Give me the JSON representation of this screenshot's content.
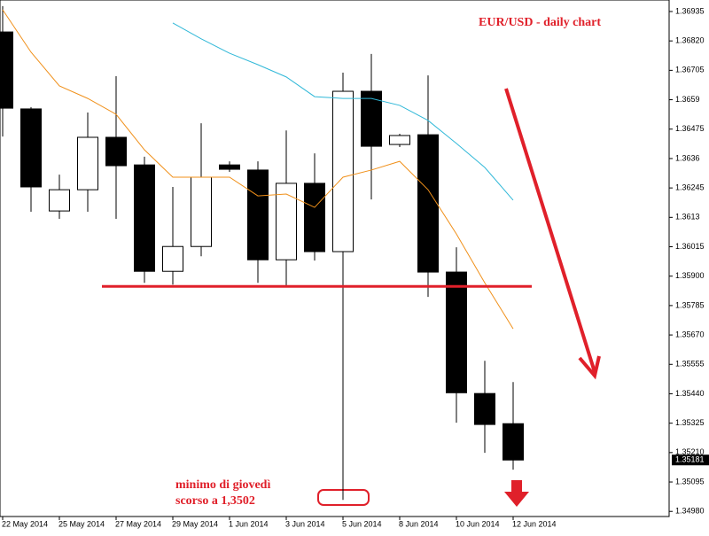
{
  "chart_data": {
    "type": "candlestick",
    "title": "EUR/USD - daily chart",
    "categories": [
      "22 May 2014",
      null,
      "25 May 2014",
      null,
      "27 May 2014",
      null,
      "29 May 2014",
      null,
      "1 Jun 2014",
      null,
      "3 Jun 2014",
      null,
      "5 Jun 2014",
      null,
      "8 Jun 2014",
      null,
      "10 Jun 2014",
      null,
      "12 Jun 2014"
    ],
    "open": [
      1.36855,
      1.36554,
      1.36155,
      1.36238,
      1.36443,
      1.36335,
      1.35919,
      1.36016,
      1.36335,
      1.36315,
      1.35964,
      1.36263,
      1.35996,
      1.36623,
      1.36415,
      1.36453,
      1.35916,
      1.35441,
      1.35323
    ],
    "high": [
      1.36956,
      1.36561,
      1.36297,
      1.3654,
      1.36682,
      1.36367,
      1.36249,
      1.36498,
      1.36349,
      1.36349,
      1.3647,
      1.3638,
      1.36696,
      1.36769,
      1.36457,
      1.36685,
      1.36013,
      1.35569,
      1.35486
    ],
    "low": [
      1.36446,
      1.36152,
      1.36124,
      1.36152,
      1.36124,
      1.35874,
      1.35867,
      1.35978,
      1.36308,
      1.35874,
      1.3586,
      1.35961,
      1.35025,
      1.362,
      1.36405,
      1.35819,
      1.35327,
      1.35209,
      1.35143
    ],
    "close": [
      1.36557,
      1.36249,
      1.36238,
      1.36443,
      1.36332,
      1.35919,
      1.36016,
      1.36287,
      1.36318,
      1.35964,
      1.36263,
      1.35996,
      1.36623,
      1.36408,
      1.3645,
      1.35916,
      1.35444,
      1.3532,
      1.35181
    ],
    "up_color": "#ffffff",
    "down_color": "#000000",
    "series": [
      {
        "color": "#f0901a",
        "values": [
          1.36942,
          1.36776,
          1.36644,
          1.36595,
          1.36533,
          1.36394,
          1.36287,
          1.36287,
          1.36287,
          1.36214,
          1.36221,
          1.36169,
          1.36287,
          1.36315,
          1.36349,
          1.36238,
          1.36065,
          1.35874,
          1.35694
        ]
      },
      {
        "color": "#30b8d8",
        "values": [
          null,
          null,
          null,
          null,
          null,
          null,
          1.3689,
          1.36828,
          1.36772,
          1.36727,
          1.36679,
          1.36602,
          1.36595,
          1.36595,
          1.36568,
          1.36509,
          1.36419,
          1.36325,
          1.36197
        ]
      }
    ],
    "support_level": 1.3586,
    "support_color": "#e0202a",
    "last_price": 1.35181,
    "annotation": [
      "minimo di giovedì",
      "scorso a 1,3502"
    ],
    "ylim": [
      1.3496,
      1.3698
    ],
    "yticks": [
      1.36935,
      {
        "value": 1.3682,
        "label": "1.36820"
      },
      1.36705,
      1.3659,
      1.36475,
      1.3636,
      1.36245,
      1.3613,
      1.36015,
      {
        "value": 1.359,
        "label": "1.35900"
      },
      1.35785,
      {
        "value": 1.3567,
        "label": "1.35670"
      },
      1.35555,
      {
        "value": 1.3544,
        "label": "1.35440"
      },
      1.35325,
      {
        "value": 1.3521,
        "label": "1.35210"
      },
      1.35095,
      {
        "value": 1.3498,
        "label": "1.34980"
      }
    ]
  }
}
